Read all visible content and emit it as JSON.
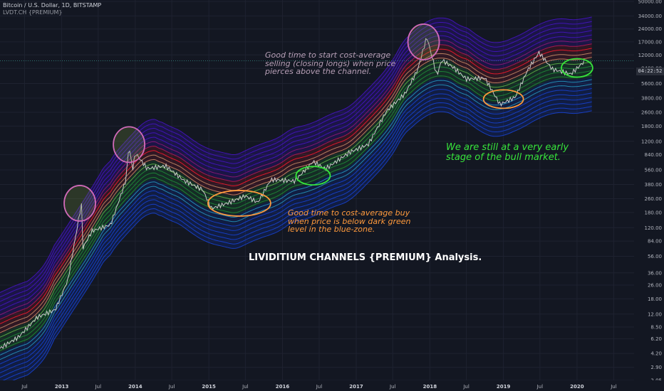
{
  "header": {
    "symbol_line": "Bitcoin / U.S. Dollar, 1D, BITSTAMP",
    "indicator_line": "LVDT.CH {PREMIUM}"
  },
  "annotations": {
    "sell_note": "Good time to start cost-average\nselling (closing longs) when price\npierces above the channel.",
    "buy_note": "Good time to cost-average buy\nwhen price is below dark green\nlevel in the blue-zone.",
    "bull_note": "We are still at a very early\nstage of the bull market.",
    "headline": "LIVIDITIUM CHANNELS {PREMIUM} Analysis."
  },
  "price_badge": "04:22:52",
  "colors": {
    "background": "#131722",
    "channel_top": "#3a10c8",
    "channel_red": "#ff1a2e",
    "channel_green": "#1f8f3a",
    "channel_bottom": "#0b3fd6",
    "price": "#c9c9c9",
    "circle_pink": "#d06ab8",
    "circle_orange": "#ff9a3c",
    "circle_green": "#37e53b"
  },
  "chart_data": {
    "type": "line",
    "title": "Bitcoin / U.S. Dollar, 1D, BITSTAMP",
    "y_scale": "log",
    "ylim": [
      2.05,
      50000
    ],
    "yticks": [
      50000,
      34000,
      24000,
      17000,
      12000,
      8400,
      5600,
      3800,
      2600,
      1800,
      1200,
      840,
      560,
      380,
      260,
      180,
      120,
      84,
      56,
      36,
      26,
      18,
      12,
      8.5,
      6.2,
      4.2,
      2.9,
      2.05
    ],
    "x_ticks": [
      {
        "label": "Jul",
        "date": "2012-07",
        "year": false
      },
      {
        "label": "2013",
        "date": "2013-01",
        "year": true
      },
      {
        "label": "Jul",
        "date": "2013-07",
        "year": false
      },
      {
        "label": "2014",
        "date": "2014-01",
        "year": true
      },
      {
        "label": "Jul",
        "date": "2014-07",
        "year": false
      },
      {
        "label": "2015",
        "date": "2015-01",
        "year": true
      },
      {
        "label": "Jul",
        "date": "2015-07",
        "year": false
      },
      {
        "label": "2016",
        "date": "2016-01",
        "year": true
      },
      {
        "label": "Jul",
        "date": "2016-07",
        "year": false
      },
      {
        "label": "2017",
        "date": "2017-01",
        "year": true
      },
      {
        "label": "Jul",
        "date": "2017-07",
        "year": false
      },
      {
        "label": "2018",
        "date": "2018-01",
        "year": true
      },
      {
        "label": "Jul",
        "date": "2018-07",
        "year": false
      },
      {
        "label": "2019",
        "date": "2019-01",
        "year": true
      },
      {
        "label": "Jul",
        "date": "2019-07",
        "year": false
      },
      {
        "label": "2020",
        "date": "2020-01",
        "year": true
      },
      {
        "label": "Jul",
        "date": "2020-07",
        "year": false
      }
    ],
    "series": [
      {
        "name": "Bitcoin / U.S. Dollar",
        "points": [
          [
            "2012-03",
            4.8
          ],
          [
            "2012-06",
            6.5
          ],
          [
            "2012-09",
            11
          ],
          [
            "2012-12",
            13.5
          ],
          [
            "2013-02",
            30
          ],
          [
            "2013-04-09",
            230
          ],
          [
            "2013-04-16",
            70
          ],
          [
            "2013-06",
            110
          ],
          [
            "2013-09",
            130
          ],
          [
            "2013-11-15",
            420
          ],
          [
            "2013-12-01",
            1100
          ],
          [
            "2013-12-18",
            550
          ],
          [
            "2014-01",
            880
          ],
          [
            "2014-03",
            580
          ],
          [
            "2014-06",
            620
          ],
          [
            "2014-09",
            420
          ],
          [
            "2014-12",
            330
          ],
          [
            "2015-01-14",
            200
          ],
          [
            "2015-04",
            230
          ],
          [
            "2015-07",
            280
          ],
          [
            "2015-09",
            235
          ],
          [
            "2015-11-04",
            430
          ],
          [
            "2015-12",
            430
          ],
          [
            "2016-03",
            415
          ],
          [
            "2016-06",
            700
          ],
          [
            "2016-08",
            575
          ],
          [
            "2016-12",
            900
          ],
          [
            "2017-03",
            1100
          ],
          [
            "2017-06",
            2700
          ],
          [
            "2017-09",
            4300
          ],
          [
            "2017-11",
            8000
          ],
          [
            "2017-12-17",
            19500
          ],
          [
            "2018-02-05",
            6900
          ],
          [
            "2018-03",
            10500
          ],
          [
            "2018-05",
            8500
          ],
          [
            "2018-07",
            6300
          ],
          [
            "2018-10",
            6500
          ],
          [
            "2018-12-15",
            3200
          ],
          [
            "2019-03",
            3900
          ],
          [
            "2019-05",
            8000
          ],
          [
            "2019-06-26",
            12800
          ],
          [
            "2019-09",
            8200
          ],
          [
            "2019-12",
            7200
          ],
          [
            "2020-02-10",
            10300
          ]
        ]
      }
    ],
    "channel_bands": [
      {
        "name": "upper-purple",
        "color": "#3a10c8"
      },
      {
        "name": "red",
        "color": "#ff1a2e"
      },
      {
        "name": "green",
        "color": "#1f8f3a"
      },
      {
        "name": "lower-blue",
        "color": "#0b3fd6"
      }
    ],
    "highlight_circles": [
      {
        "date": "2013-04",
        "price": 230,
        "color": "pink"
      },
      {
        "date": "2013-12",
        "price": 1100,
        "color": "pink"
      },
      {
        "date": "2017-12",
        "price": 17000,
        "color": "pink"
      },
      {
        "date": "2015-06",
        "price": 230,
        "color": "orange"
      },
      {
        "date": "2016-06",
        "price": 480,
        "color": "green"
      },
      {
        "date": "2019-01",
        "price": 3700,
        "color": "orange"
      },
      {
        "date": "2020-01",
        "price": 8500,
        "color": "green"
      }
    ]
  }
}
